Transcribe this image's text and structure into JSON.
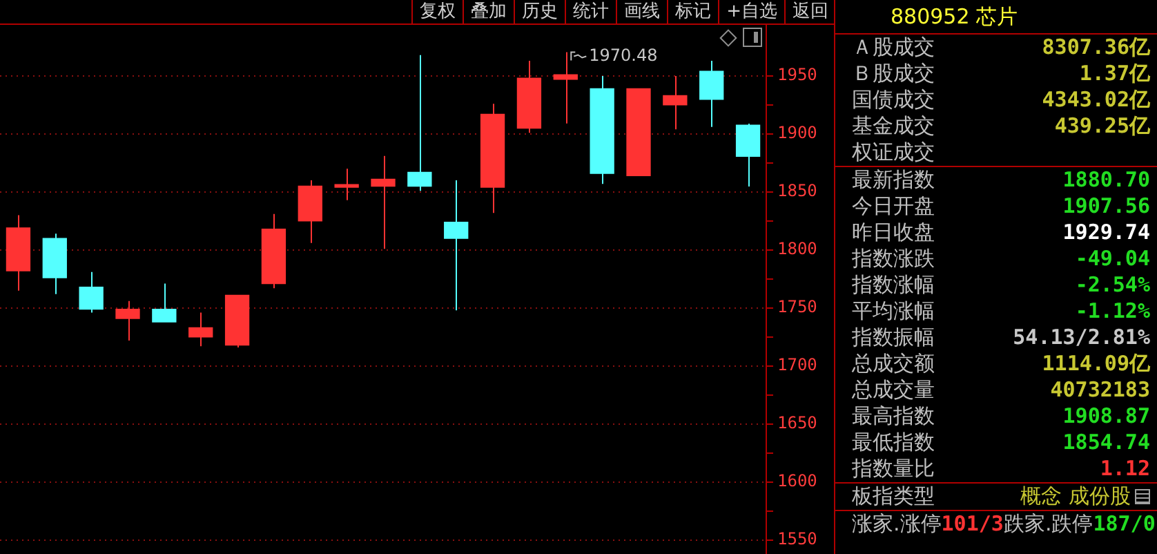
{
  "chart_data": {
    "type": "candlestick",
    "title": "880952 芯片",
    "categories": [
      null,
      null,
      null,
      null,
      null,
      null,
      null,
      null,
      null,
      null,
      null,
      null,
      null,
      null,
      null,
      null,
      null,
      null,
      null,
      null,
      null
    ],
    "ohlc": [
      [
        1782,
        1830,
        1765,
        1819
      ],
      [
        1810,
        1814,
        1762,
        1776
      ],
      [
        1768,
        1781,
        1746,
        1749
      ],
      [
        1741,
        1756,
        1722,
        1749
      ],
      [
        1749,
        1771,
        1738,
        1738
      ],
      [
        1725,
        1746,
        1717,
        1733
      ],
      [
        1718,
        1761,
        1716,
        1761
      ],
      [
        1771,
        1831,
        1767,
        1818
      ],
      [
        1825,
        1860,
        1806,
        1855
      ],
      [
        1854,
        1870,
        1843,
        1856
      ],
      [
        1855,
        1881,
        1801,
        1861
      ],
      [
        1867,
        1968,
        1851,
        1855
      ],
      [
        1824,
        1860,
        1748,
        1810
      ],
      [
        1854,
        1926,
        1832,
        1917
      ],
      [
        1905,
        1963,
        1901,
        1948
      ],
      [
        1947,
        1970.48,
        1909,
        1951
      ],
      [
        1939,
        1950,
        1857,
        1866
      ],
      [
        1864,
        1939,
        1864,
        1939
      ],
      [
        1925,
        1950,
        1904,
        1933
      ],
      [
        1954,
        1963,
        1906,
        1929.74
      ],
      [
        1907.56,
        1908.87,
        1854.74,
        1880.7
      ]
    ],
    "colors": [
      "#ff3333",
      "#55ffff",
      "#55ffff",
      "#ff3333",
      "#55ffff",
      "#ff3333",
      "#ff3333",
      "#ff3333",
      "#ff3333",
      "#ff3333",
      "#ff3333",
      "#55ffff",
      "#55ffff",
      "#ff3333",
      "#ff3333",
      "#ff3333",
      "#55ffff",
      "#ff3333",
      "#ff3333",
      "#55ffff",
      "#55ffff"
    ],
    "ylim": [
      1538,
      1994
    ],
    "yticks": [
      1550,
      {
        "value": 1575,
        "label": null
      },
      1600,
      {
        "value": 1625,
        "label": null
      },
      1650,
      {
        "value": 1675,
        "label": null
      },
      1700,
      {
        "value": 1725,
        "label": null
      },
      1750,
      {
        "value": 1775,
        "label": null
      },
      1800,
      {
        "value": 1825,
        "label": null
      },
      1850,
      {
        "value": 1875,
        "label": null
      },
      1900,
      {
        "value": 1925,
        "label": null
      },
      1950
    ],
    "grid": "y",
    "tick_labels": "y",
    "annotations": [
      "复权",
      "叠加",
      "历史",
      "统计",
      "画线",
      "标记",
      "+自选",
      "返回",
      "Ａ股成交",
      "8307.36亿",
      "Ｂ股成交",
      "1.37亿",
      "国债成交",
      "4343.02亿",
      "基金成交",
      "439.25亿",
      "权证成交",
      "最新指数",
      "1880.70",
      "今日开盘",
      "1907.56",
      "昨日收盘",
      "1929.74",
      "指数涨跌",
      "-49.04",
      "指数涨幅",
      "-2.54%",
      "平均涨幅",
      "-1.12%",
      "指数振幅",
      "54.13/2.81%",
      "总成交额",
      "1114.09亿",
      "总成交量",
      "40732183",
      "最高指数",
      "1908.87",
      "最低指数",
      "1854.74",
      "指数量比",
      "1.12",
      "板指类型",
      "概念 成份股",
      "涨家.涨停",
      "101/3",
      "跌家.跌停",
      "187/0",
      "1970.48"
    ]
  }
}
